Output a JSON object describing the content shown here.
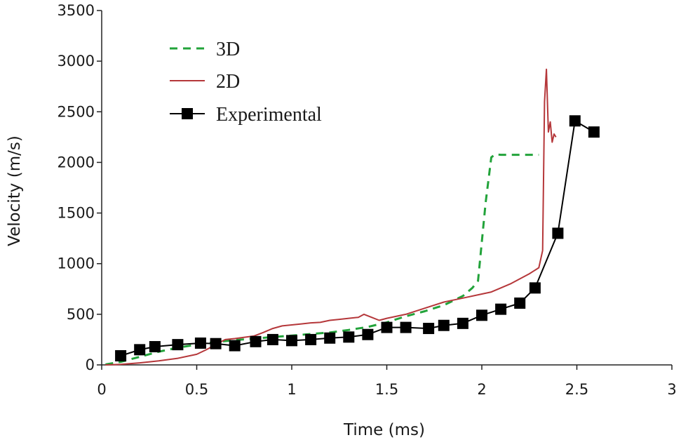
{
  "chart_data": {
    "type": "line",
    "title": "",
    "xlabel": "Time (ms)",
    "ylabel": "Velocity (m/s)",
    "xlim": [
      0,
      3
    ],
    "ylim": [
      0,
      3500
    ],
    "xticks": [
      0,
      0.5,
      1,
      1.5,
      2,
      2.5,
      3
    ],
    "xtick_labels": [
      "0",
      "0.5",
      "1",
      "1.5",
      "2",
      "2.5",
      "3"
    ],
    "yticks": [
      0,
      500,
      1000,
      1500,
      2000,
      2500,
      3000,
      3500
    ],
    "ytick_labels": [
      "0",
      "500",
      "1000",
      "1500",
      "2000",
      "2500",
      "3000",
      "3500"
    ],
    "grid": false,
    "legend_position": "top-left",
    "series": [
      {
        "name": "3D",
        "color": "#22a33a",
        "style": "dashed",
        "points": [
          [
            0.02,
            5
          ],
          [
            0.1,
            30
          ],
          [
            0.2,
            80
          ],
          [
            0.3,
            130
          ],
          [
            0.4,
            170
          ],
          [
            0.5,
            200
          ],
          [
            0.6,
            225
          ],
          [
            0.7,
            245
          ],
          [
            0.8,
            260
          ],
          [
            0.9,
            275
          ],
          [
            1.0,
            290
          ],
          [
            1.1,
            305
          ],
          [
            1.2,
            320
          ],
          [
            1.3,
            345
          ],
          [
            1.4,
            375
          ],
          [
            1.5,
            420
          ],
          [
            1.6,
            480
          ],
          [
            1.7,
            530
          ],
          [
            1.8,
            590
          ],
          [
            1.9,
            680
          ],
          [
            1.95,
            760
          ],
          [
            1.98,
            830
          ],
          [
            2.02,
            1600
          ],
          [
            2.05,
            2050
          ],
          [
            2.07,
            2080
          ],
          [
            2.1,
            2075
          ],
          [
            2.2,
            2075
          ],
          [
            2.3,
            2075
          ]
        ]
      },
      {
        "name": "2D",
        "color": "#b5373a",
        "style": "solid",
        "points": [
          [
            0.02,
            0
          ],
          [
            0.1,
            5
          ],
          [
            0.2,
            20
          ],
          [
            0.3,
            40
          ],
          [
            0.4,
            65
          ],
          [
            0.5,
            105
          ],
          [
            0.55,
            150
          ],
          [
            0.6,
            200
          ],
          [
            0.65,
            250
          ],
          [
            0.7,
            260
          ],
          [
            0.8,
            285
          ],
          [
            0.85,
            320
          ],
          [
            0.9,
            360
          ],
          [
            0.95,
            385
          ],
          [
            1.0,
            395
          ],
          [
            1.05,
            405
          ],
          [
            1.1,
            415
          ],
          [
            1.15,
            420
          ],
          [
            1.2,
            440
          ],
          [
            1.25,
            450
          ],
          [
            1.3,
            460
          ],
          [
            1.35,
            470
          ],
          [
            1.38,
            500
          ],
          [
            1.42,
            470
          ],
          [
            1.46,
            440
          ],
          [
            1.5,
            460
          ],
          [
            1.6,
            500
          ],
          [
            1.7,
            560
          ],
          [
            1.8,
            620
          ],
          [
            1.9,
            660
          ],
          [
            2.0,
            700
          ],
          [
            2.05,
            720
          ],
          [
            2.1,
            760
          ],
          [
            2.15,
            800
          ],
          [
            2.2,
            850
          ],
          [
            2.25,
            900
          ],
          [
            2.3,
            960
          ],
          [
            2.32,
            1130
          ],
          [
            2.33,
            2600
          ],
          [
            2.34,
            2920
          ],
          [
            2.35,
            2300
          ],
          [
            2.36,
            2400
          ],
          [
            2.37,
            2200
          ],
          [
            2.38,
            2280
          ],
          [
            2.39,
            2250
          ]
        ]
      },
      {
        "name": "Experimental",
        "color": "#000000",
        "style": "solid-markers",
        "marker": "square",
        "points": [
          [
            0.1,
            90
          ],
          [
            0.2,
            150
          ],
          [
            0.28,
            180
          ],
          [
            0.4,
            200
          ],
          [
            0.52,
            215
          ],
          [
            0.6,
            210
          ],
          [
            0.7,
            190
          ],
          [
            0.81,
            230
          ],
          [
            0.9,
            250
          ],
          [
            1.0,
            240
          ],
          [
            1.1,
            250
          ],
          [
            1.2,
            265
          ],
          [
            1.3,
            275
          ],
          [
            1.4,
            300
          ],
          [
            1.5,
            370
          ],
          [
            1.6,
            370
          ],
          [
            1.72,
            360
          ],
          [
            1.8,
            390
          ],
          [
            1.9,
            410
          ],
          [
            2.0,
            490
          ],
          [
            2.1,
            550
          ],
          [
            2.2,
            610
          ],
          [
            2.28,
            760
          ],
          [
            2.4,
            1300
          ],
          [
            2.49,
            2410
          ],
          [
            2.59,
            2300
          ]
        ]
      }
    ]
  }
}
